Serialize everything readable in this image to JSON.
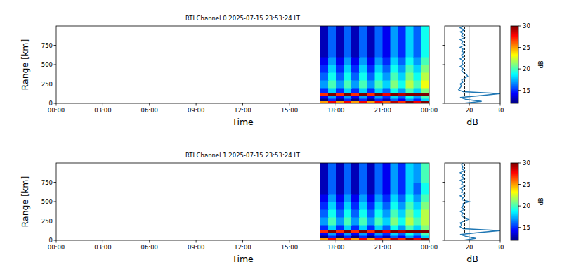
{
  "chart_data": [
    {
      "type": "heatmap",
      "title": "RTI Channel 0 2025-07-15 23:53:24 LT",
      "x_label": "Time",
      "y_label": "Range [km]",
      "xlim": [
        0,
        24
      ],
      "xticks": [
        {
          "value": 0,
          "label": "00:00"
        },
        {
          "value": 3,
          "label": "03:00"
        },
        {
          "value": 6,
          "label": "06:00"
        },
        {
          "value": 9,
          "label": "09:00"
        },
        {
          "value": 12,
          "label": "12:00"
        },
        {
          "value": 15,
          "label": "15:00"
        },
        {
          "value": 18,
          "label": "18:00"
        },
        {
          "value": 21,
          "label": "21:00"
        },
        {
          "value": 24,
          "label": "00:00"
        }
      ],
      "ylim": [
        0,
        1000
      ],
      "yticks": [
        0,
        250,
        500,
        750
      ],
      "x_bins": [
        17,
        17.5,
        18,
        18.5,
        19,
        19.5,
        20,
        20.5,
        21,
        21.5,
        22,
        22.5,
        23,
        23.5,
        24
      ],
      "y_bins": [
        0,
        30,
        60,
        100,
        130,
        200,
        300,
        400,
        500,
        600,
        750,
        1000
      ],
      "cells": [
        [
          25,
          28,
          25,
          28,
          25,
          28,
          25,
          28,
          26,
          29,
          27,
          30,
          28,
          30
        ],
        [
          12,
          15,
          12,
          15,
          12,
          15,
          12,
          15,
          13,
          16,
          14,
          17,
          15,
          18
        ],
        [
          14,
          17,
          14,
          17,
          14,
          17,
          14,
          17,
          15,
          18,
          16,
          19,
          17,
          20
        ],
        [
          27,
          30,
          27,
          30,
          27,
          30,
          27,
          30,
          28,
          30,
          29,
          30,
          30,
          30
        ],
        [
          15,
          18,
          15,
          18,
          15,
          18,
          15,
          18,
          16,
          19,
          17,
          20,
          18,
          21
        ],
        [
          17,
          20,
          17,
          20,
          17,
          20,
          17,
          20,
          18,
          21,
          19,
          22,
          20,
          23
        ],
        [
          16,
          19,
          16,
          19,
          16,
          19,
          16,
          19,
          17,
          20,
          18,
          21,
          19,
          22
        ],
        [
          15,
          18,
          15,
          18,
          15,
          18,
          15,
          18,
          16,
          19,
          17,
          20,
          18,
          21
        ],
        [
          14,
          17,
          14,
          17,
          14,
          17,
          14,
          17,
          15,
          18,
          16,
          19,
          17,
          20
        ],
        [
          13,
          16,
          13,
          16,
          13,
          16,
          13,
          16,
          14,
          17,
          15,
          18,
          16,
          19
        ],
        [
          13,
          16,
          13,
          16,
          13,
          16,
          13,
          16,
          14,
          17,
          15,
          18,
          16,
          19
        ]
      ],
      "colorbar": {
        "range": [
          12,
          30
        ],
        "ticks": [
          15,
          20,
          25,
          30
        ],
        "label": "dB"
      },
      "profile": {
        "type": "line",
        "x_label": "dB",
        "xlim": [
          12,
          30
        ],
        "xticks": [
          20,
          30
        ],
        "grid": true,
        "tick_labels": "x",
        "y": [
          0,
          25,
          50,
          75,
          100,
          125,
          150,
          175,
          200,
          225,
          250,
          275,
          300,
          325,
          350,
          375,
          400,
          425,
          450,
          475,
          500,
          525,
          550,
          575,
          600,
          625,
          650,
          675,
          700,
          725,
          750,
          775,
          800,
          825,
          850,
          875,
          900,
          925,
          950,
          975,
          1000
        ],
        "series": [
          {
            "color": "#1f77b4",
            "values": [
              18,
              24,
              19,
              17,
              24,
              30,
              18,
              16.5,
              17,
              17.5,
              17,
              18,
              17.5,
              18.5,
              19.5,
              19,
              18,
              17.5,
              18,
              17,
              18,
              17.5,
              18,
              17,
              18,
              17.5,
              18.5,
              17.5,
              18,
              17,
              18.5,
              17.5,
              18,
              17,
              18.5,
              17.5,
              18,
              17,
              18.5,
              17,
              18
            ]
          },
          {
            "color": "#000000",
            "line_style": "dashed",
            "y": [
              100,
              1000
            ],
            "values": [
              18.5,
              18.5
            ]
          }
        ]
      }
    },
    {
      "type": "heatmap",
      "title": "RTI Channel 1 2025-07-15 23:53:24 LT",
      "x_label": "Time",
      "y_label": "Range [km]",
      "xlim": [
        0,
        24
      ],
      "xticks": [
        {
          "value": 0,
          "label": "00:00"
        },
        {
          "value": 3,
          "label": "03:00"
        },
        {
          "value": 6,
          "label": "06:00"
        },
        {
          "value": 9,
          "label": "09:00"
        },
        {
          "value": 12,
          "label": "12:00"
        },
        {
          "value": 15,
          "label": "15:00"
        },
        {
          "value": 18,
          "label": "18:00"
        },
        {
          "value": 21,
          "label": "21:00"
        },
        {
          "value": 24,
          "label": "00:00"
        }
      ],
      "ylim": [
        0,
        1000
      ],
      "yticks": [
        0,
        250,
        500,
        750
      ],
      "x_bins": [
        17,
        17.5,
        18,
        18.5,
        19,
        19.5,
        20,
        20.5,
        21,
        21.5,
        22,
        22.5,
        23,
        23.5,
        24
      ],
      "y_bins": [
        0,
        30,
        60,
        100,
        130,
        200,
        300,
        400,
        500,
        600,
        750,
        1000
      ],
      "cells": [
        [
          25,
          28,
          25,
          28,
          25,
          28,
          25,
          28,
          26,
          29,
          27,
          30,
          28,
          30
        ],
        [
          12,
          15,
          12,
          15,
          12,
          15,
          12,
          15,
          13,
          16,
          14,
          17,
          15,
          18
        ],
        [
          14,
          17,
          14,
          17,
          14,
          17,
          14,
          17,
          15,
          18,
          16,
          19,
          17,
          20
        ],
        [
          27,
          30,
          27,
          30,
          27,
          30,
          27,
          30,
          28,
          30,
          29,
          30,
          30,
          30
        ],
        [
          15,
          18,
          15,
          18,
          15,
          18,
          15,
          18,
          16,
          19,
          17,
          20,
          18,
          21
        ],
        [
          17,
          20,
          17,
          20,
          17,
          20,
          17,
          20,
          18,
          21,
          19,
          22,
          20,
          22
        ],
        [
          16,
          19,
          16,
          19,
          16,
          19,
          16,
          19,
          17,
          20,
          18,
          21,
          19,
          22
        ],
        [
          15,
          18,
          15,
          18,
          15,
          18,
          15,
          18,
          16,
          19,
          17,
          20,
          18,
          21
        ],
        [
          14,
          17,
          14,
          17,
          14,
          17,
          14,
          17,
          15,
          18,
          16,
          19,
          17,
          20
        ],
        [
          13,
          16,
          13,
          16,
          13,
          16,
          13,
          16,
          14,
          17,
          15,
          18,
          16,
          19
        ],
        [
          13,
          16,
          13,
          16,
          13,
          16,
          13,
          16,
          14,
          17,
          15,
          18,
          17,
          20
        ]
      ],
      "colorbar": {
        "range": [
          12,
          30
        ],
        "ticks": [
          15,
          20,
          25,
          30
        ],
        "label": "dB"
      },
      "profile": {
        "type": "line",
        "x_label": "dB",
        "xlim": [
          12,
          30
        ],
        "xticks": [
          20,
          30
        ],
        "grid": true,
        "tick_labels": "x",
        "y": [
          0,
          25,
          50,
          75,
          100,
          125,
          150,
          175,
          200,
          225,
          250,
          275,
          300,
          325,
          350,
          375,
          400,
          425,
          450,
          475,
          500,
          525,
          550,
          575,
          600,
          625,
          650,
          675,
          700,
          725,
          750,
          775,
          800,
          825,
          850,
          875,
          900,
          925,
          950,
          975,
          1000
        ],
        "series": [
          {
            "color": "#1f77b4",
            "values": [
              18,
              22,
              19,
              17,
              23,
              30,
              18,
              17,
              17.5,
              17,
              18.5,
              20,
              18,
              17.5,
              18,
              17,
              18.5,
              17.5,
              18,
              18,
              20,
              17.5,
              18,
              17,
              18.5,
              17.5,
              18,
              17,
              18.5,
              17.5,
              18,
              17,
              18.5,
              17.5,
              18,
              17,
              18.5,
              17.5,
              18,
              17.5,
              18
            ]
          },
          {
            "color": "#000000",
            "line_style": "dashed",
            "y": [
              100,
              1000
            ],
            "values": [
              18.5,
              18.5
            ]
          }
        ]
      }
    }
  ]
}
